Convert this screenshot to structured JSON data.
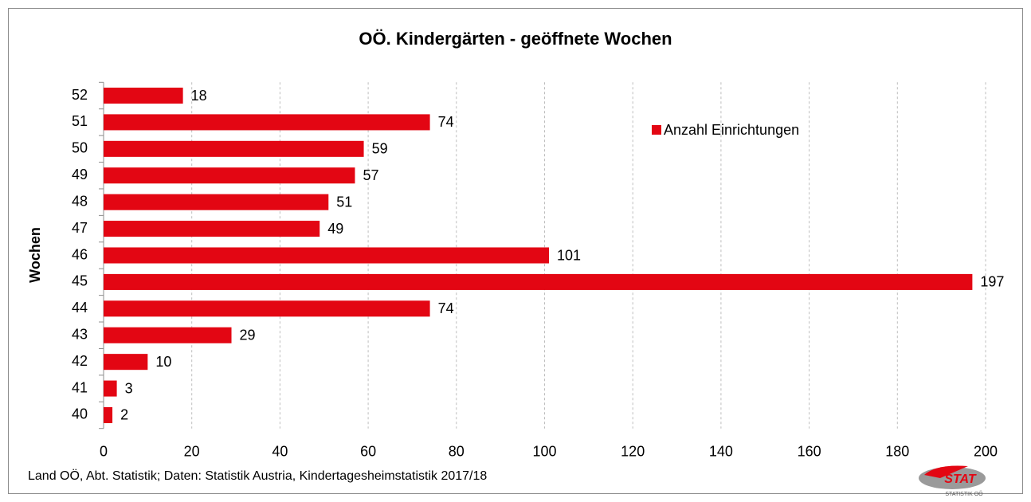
{
  "chart_data": {
    "type": "barh",
    "title": "OÖ. Kindergärten - geöffnete Wochen",
    "y_label": "Wochen",
    "categories": [
      "52",
      "51",
      "50",
      "49",
      "48",
      "47",
      "46",
      "45",
      "44",
      "43",
      "42",
      "41",
      "40"
    ],
    "series": [
      {
        "name": "Anzahl Einrichtungen",
        "color": "#e30613",
        "values": [
          18,
          74,
          59,
          57,
          51,
          49,
          101,
          197,
          74,
          29,
          10,
          3,
          2
        ]
      }
    ],
    "xlim": [
      0,
      200
    ],
    "xticks": [
      0,
      20,
      40,
      60,
      80,
      100,
      120,
      140,
      160,
      180,
      200
    ],
    "grid": true,
    "legend": "upper right",
    "source": "Land OÖ, Abt. Statistik; Daten: Statistik Austria, Kindertagesheimstatistik 2017/18",
    "logo": {
      "text": "STAT",
      "subtext": "STATISTIK OÖ"
    }
  }
}
